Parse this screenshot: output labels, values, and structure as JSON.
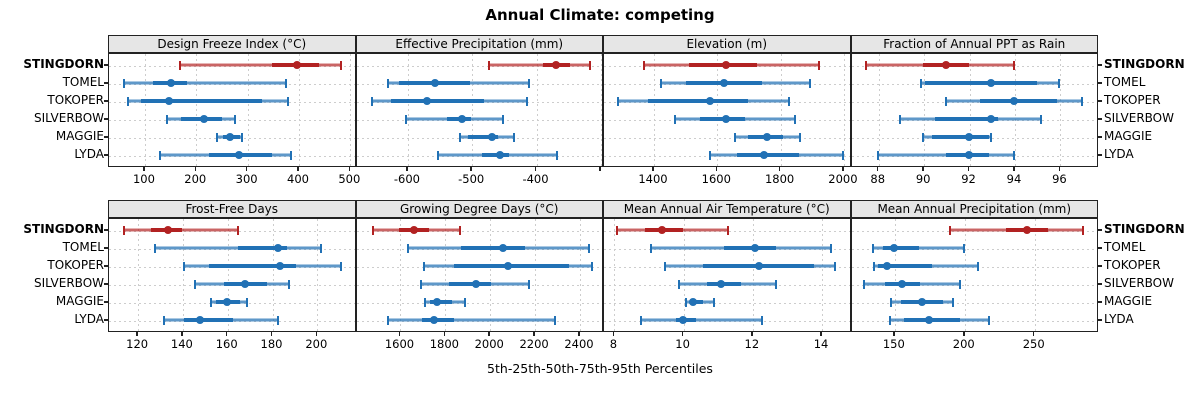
{
  "title": "Annual Climate: competing",
  "footer": "5th-25th-50th-75th-95th Percentiles",
  "sites": [
    "STINGDORN",
    "TOMEL",
    "TOKOPER",
    "SILVERBOW",
    "MAGGIE",
    "LYDA"
  ],
  "highlighted_site": "STINGDORN",
  "colors": {
    "highlight": "#B22222",
    "highlight_light": "rgba(178,34,34,0.33)",
    "normal": "#2171B5",
    "normal_light": "rgba(33,113,181,0.38)",
    "strip_bg": "#E6E6E6",
    "panel_border": "#222222",
    "grid": "#CDCDCD"
  },
  "chart_data": {
    "type": "percentile-dotplot",
    "title": "Annual Climate: competing",
    "xlabel": "5th-25th-50th-75th-95th Percentiles",
    "percentiles": [
      5,
      25,
      50,
      75,
      95
    ],
    "legend_position": "none",
    "grid": "dashed",
    "layout": "2 rows x 4 columns of panels, shared site rows",
    "panels": [
      {
        "label": "Design Freeze Index (°C)",
        "xlim": [
          30,
          512
        ],
        "ticks": [
          100,
          200,
          300,
          400,
          500
        ],
        "extra_ticks": [],
        "values": [
          [
            170,
            350,
            398,
            440,
            483
          ],
          [
            62,
            117,
            153,
            183,
            377
          ],
          [
            68,
            95,
            148,
            330,
            380
          ],
          [
            145,
            172,
            217,
            253,
            277
          ],
          [
            243,
            253,
            268,
            287,
            291
          ],
          [
            132,
            227,
            285,
            350,
            387
          ]
        ]
      },
      {
        "label": "Effective Precipitation (mm)",
        "xlim": [
          -680,
          -295
        ],
        "ticks": [
          -600,
          -500,
          -400
        ],
        "extra_ticks": [
          -300
        ],
        "values": [
          [
            -473,
            -388,
            -368,
            -347,
            -316
          ],
          [
            -630,
            -612,
            -557,
            -502,
            -410
          ],
          [
            -654,
            -625,
            -569,
            -480,
            -414
          ],
          [
            -602,
            -538,
            -514,
            -500,
            -451
          ],
          [
            -518,
            -505,
            -467,
            -459,
            -433
          ],
          [
            -551,
            -483,
            -455,
            -441,
            -367
          ]
        ]
      },
      {
        "label": "Elevation (m)",
        "xlim": [
          1242,
          2024
        ],
        "ticks": [
          1400,
          1600,
          1800,
          2000
        ],
        "extra_ticks": [],
        "values": [
          [
            1370,
            1515,
            1630,
            1730,
            1925
          ],
          [
            1425,
            1505,
            1625,
            1745,
            1895
          ],
          [
            1290,
            1385,
            1580,
            1700,
            1830
          ],
          [
            1470,
            1550,
            1630,
            1690,
            1850
          ],
          [
            1660,
            1700,
            1760,
            1810,
            1865
          ],
          [
            1580,
            1665,
            1750,
            1860,
            2000
          ]
        ]
      },
      {
        "label": "Fraction of Annual PPT as Rain",
        "xlim": [
          86.8,
          97.7
        ],
        "ticks": [
          88,
          90,
          92,
          94,
          96
        ],
        "extra_ticks": [],
        "values": [
          [
            87.5,
            90,
            91,
            92,
            94
          ],
          [
            89.9,
            90.1,
            93,
            95,
            96
          ],
          [
            91,
            92.5,
            94,
            95.9,
            97
          ],
          [
            89,
            90.5,
            93,
            93.3,
            95.2
          ],
          [
            90,
            90.4,
            92,
            92.9,
            93
          ],
          [
            88,
            91,
            92,
            92.9,
            94
          ]
        ]
      },
      {
        "label": "Frost-Free Days",
        "xlim": [
          107,
          217.5
        ],
        "ticks": [
          120,
          140,
          160,
          180,
          200
        ],
        "extra_ticks": [],
        "values": [
          [
            114,
            126,
            134,
            140,
            165
          ],
          [
            128,
            165,
            183,
            187,
            202
          ],
          [
            141,
            152,
            184,
            191,
            211
          ],
          [
            146,
            159,
            168,
            178,
            188
          ],
          [
            153,
            155,
            160,
            166,
            169
          ],
          [
            132,
            141,
            148,
            163,
            183
          ]
        ]
      },
      {
        "label": "Growing Degree Days (°C)",
        "xlim": [
          1404,
          2507
        ],
        "ticks": [
          1600,
          1800,
          2000,
          2200,
          2400
        ],
        "extra_ticks": [],
        "values": [
          [
            1480,
            1600,
            1665,
            1730,
            1870
          ],
          [
            1640,
            1875,
            2060,
            2160,
            2445
          ],
          [
            1710,
            1845,
            2085,
            2355,
            2460
          ],
          [
            1695,
            1820,
            1940,
            2010,
            2175
          ],
          [
            1715,
            1735,
            1765,
            1835,
            1890
          ],
          [
            1550,
            1700,
            1755,
            1845,
            2295
          ]
        ]
      },
      {
        "label": "Mean Annual Air Temperature (°C)",
        "xlim": [
          7.7,
          14.85
        ],
        "ticks": [
          8,
          10,
          12,
          14
        ],
        "extra_ticks": [],
        "values": [
          [
            8.1,
            8.9,
            9.4,
            10,
            11.3
          ],
          [
            9.1,
            11.2,
            12.1,
            12.7,
            14.3
          ],
          [
            9.5,
            10.6,
            12.2,
            13.8,
            14.4
          ],
          [
            9.9,
            10.7,
            11.1,
            11.7,
            12.7
          ],
          [
            10.1,
            10.2,
            10.3,
            10.6,
            10.9
          ],
          [
            8.8,
            9.8,
            10,
            10.4,
            12.3
          ]
        ]
      },
      {
        "label": "Mean Annual Precipitation (mm)",
        "xlim": [
          119,
          296
        ],
        "ticks": [
          150,
          200,
          250
        ],
        "extra_ticks": [],
        "values": [
          [
            190,
            230,
            245,
            260,
            285
          ],
          [
            135,
            142,
            150,
            168,
            200
          ],
          [
            136,
            139,
            145,
            177,
            210
          ],
          [
            129,
            144,
            156,
            169,
            197
          ],
          [
            148,
            155,
            170,
            185,
            192
          ],
          [
            147,
            157,
            175,
            197,
            218
          ]
        ]
      }
    ]
  }
}
